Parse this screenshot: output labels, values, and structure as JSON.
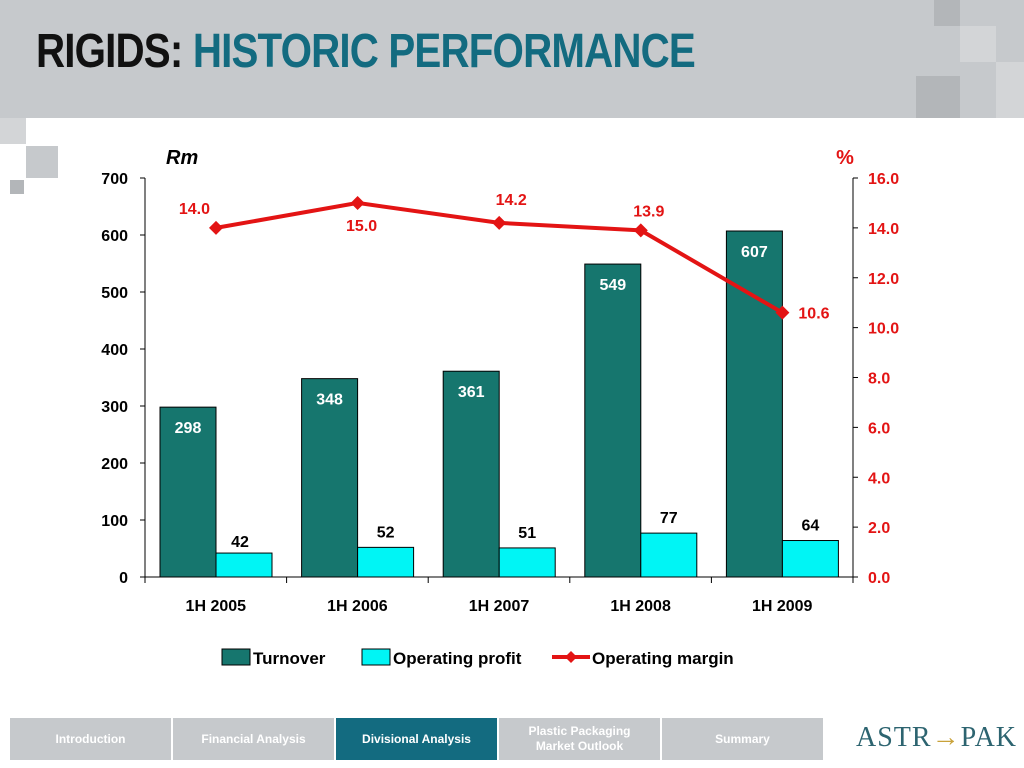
{
  "slide": {
    "title_part1": "RIGIDS:",
    "title_part2": "HISTORIC PERFORMANCE"
  },
  "colors": {
    "turnover": "#16766e",
    "operating_profit": "#00f5f5",
    "operating_margin": "#e31414",
    "title_accent": "#136b80",
    "header_bg": "#c6c9cc",
    "nav_active": "#136b80"
  },
  "chart_data": {
    "type": "bar",
    "categories": [
      "1H 2005",
      "1H 2006",
      "1H 2007",
      "1H 2008",
      "1H 2009"
    ],
    "left_axis": {
      "label": "Rm",
      "range": [
        0,
        700
      ],
      "ticks": [
        "0",
        "100",
        "200",
        "300",
        "400",
        "500",
        "600",
        "700"
      ]
    },
    "right_axis": {
      "label": "%",
      "range": [
        0,
        16
      ],
      "ticks": [
        "0.0",
        "2.0",
        "4.0",
        "6.0",
        "8.0",
        "10.0",
        "12.0",
        "14.0",
        "16.0"
      ]
    },
    "series": [
      {
        "name": "Turnover",
        "kind": "bar",
        "axis": "left",
        "values": [
          298,
          348,
          361,
          549,
          607
        ]
      },
      {
        "name": "Operating profit",
        "kind": "bar",
        "axis": "left",
        "values": [
          42,
          52,
          51,
          77,
          64
        ]
      },
      {
        "name": "Operating margin",
        "kind": "line",
        "axis": "right",
        "values": [
          14.0,
          15.0,
          14.2,
          13.9,
          10.6
        ],
        "labels": [
          "14.0",
          "15.0",
          "14.2",
          "13.9",
          "10.6"
        ]
      }
    ],
    "legend": "bottom",
    "grid": false
  },
  "nav": {
    "tabs": [
      {
        "label": "Introduction"
      },
      {
        "label": "Financial Analysis"
      },
      {
        "label": "Divisional Analysis"
      },
      {
        "label": "Plastic Packaging Market Outlook"
      },
      {
        "label": "Summary"
      }
    ],
    "active_index": 2
  },
  "logo": {
    "text_before": "ASTR",
    "text_after": "PAK"
  }
}
